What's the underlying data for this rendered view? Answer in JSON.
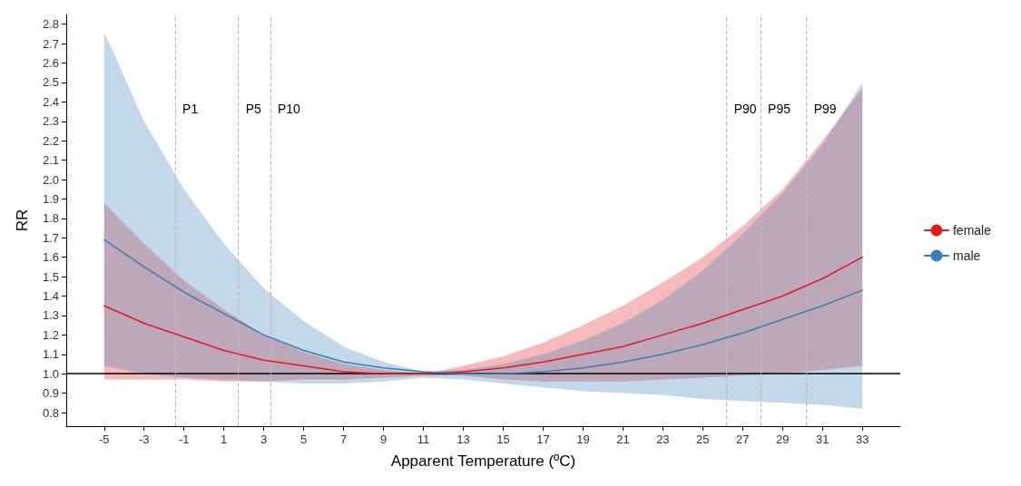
{
  "chart_data": {
    "type": "line",
    "xlabel": "Apparent Temperature (ºC)",
    "ylabel": "RR",
    "xlim": [
      -6.9,
      34.9
    ],
    "ylim": [
      0.73,
      2.85
    ],
    "xticks": [
      -5,
      -3,
      -1,
      1,
      3,
      5,
      7,
      9,
      11,
      13,
      15,
      17,
      19,
      21,
      23,
      25,
      27,
      29,
      31,
      33
    ],
    "yticks": [
      0.8,
      0.9,
      {
        "value": 1,
        "label": "1.0"
      },
      1.1,
      1.2,
      1.3,
      1.4,
      1.5,
      1.6,
      1.7,
      1.8,
      1.9,
      {
        "value": 2,
        "label": "2.0"
      },
      2.1,
      2.2,
      2.3,
      2.4,
      2.5,
      2.6,
      2.7,
      2.8
    ],
    "grid": false,
    "legend": "right",
    "marker": "none",
    "line_style": "solid",
    "series": [
      {
        "name": "female",
        "color": "#e41a1c",
        "x": [
          -5,
          -3,
          -1,
          1,
          3,
          5,
          7,
          9,
          11,
          13,
          15,
          17,
          19,
          21,
          23,
          25,
          27,
          29,
          31,
          33
        ],
        "values": [
          1.35,
          1.26,
          1.19,
          1.12,
          1.07,
          1.04,
          1.01,
          1.0,
          1.0,
          1.01,
          1.03,
          1.06,
          1.1,
          1.14,
          1.2,
          1.26,
          1.33,
          1.4,
          1.49,
          1.6
        ],
        "lower": [
          0.97,
          0.97,
          0.97,
          0.96,
          0.96,
          0.97,
          0.97,
          0.98,
          0.99,
          0.99,
          0.97,
          0.96,
          0.96,
          0.96,
          0.97,
          0.98,
          0.99,
          1.0,
          1.02,
          1.04
        ],
        "upper": [
          1.88,
          1.67,
          1.48,
          1.33,
          1.2,
          1.11,
          1.05,
          1.02,
          1.0,
          1.04,
          1.09,
          1.16,
          1.25,
          1.35,
          1.47,
          1.6,
          1.76,
          1.95,
          2.2,
          2.47
        ]
      },
      {
        "name": "male",
        "color": "#377eb8",
        "x": [
          -5,
          -3,
          -1,
          1,
          3,
          5,
          7,
          9,
          11,
          13,
          15,
          17,
          19,
          21,
          23,
          25,
          27,
          29,
          31,
          33
        ],
        "values": [
          1.69,
          1.55,
          1.42,
          1.31,
          1.2,
          1.12,
          1.06,
          1.03,
          1.01,
          1.0,
          1.0,
          1.01,
          1.03,
          1.06,
          1.1,
          1.15,
          1.21,
          1.28,
          1.35,
          1.43
        ],
        "lower": [
          1.04,
          1.0,
          0.98,
          0.97,
          0.96,
          0.95,
          0.95,
          0.96,
          0.98,
          0.97,
          0.95,
          0.93,
          0.91,
          0.9,
          0.89,
          0.87,
          0.86,
          0.85,
          0.84,
          0.82
        ],
        "upper": [
          2.76,
          2.3,
          1.95,
          1.67,
          1.44,
          1.27,
          1.14,
          1.06,
          1.01,
          1.02,
          1.05,
          1.1,
          1.17,
          1.26,
          1.38,
          1.53,
          1.72,
          1.93,
          2.18,
          2.5
        ]
      }
    ],
    "ref_lines": [
      {
        "axis": "y",
        "value": 1.0,
        "color": "#000000",
        "line_style": "solid"
      },
      {
        "axis": "x",
        "value": -1.44,
        "label": "P1",
        "color": "#bbbbbb",
        "line_style": "dashed"
      },
      {
        "axis": "x",
        "value": 1.73,
        "label": "P5",
        "color": "#bbbbbb",
        "line_style": "dashed"
      },
      {
        "axis": "x",
        "value": 3.33,
        "label": "P10",
        "color": "#bbbbbb",
        "line_style": "dashed"
      },
      {
        "axis": "x",
        "value": 26.2,
        "label": "P90",
        "color": "#bbbbbb",
        "line_style": "dashed"
      },
      {
        "axis": "x",
        "value": 27.9,
        "label": "P95",
        "color": "#bbbbbb",
        "line_style": "dashed"
      },
      {
        "axis": "x",
        "value": 30.2,
        "label": "P99",
        "color": "#bbbbbb",
        "line_style": "dashed"
      }
    ]
  }
}
